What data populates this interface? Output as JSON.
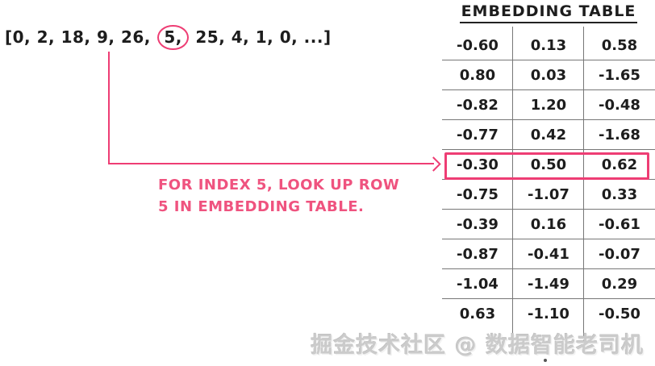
{
  "colors": {
    "accent_pink": "#ee3d74",
    "annotation_pink": "#ef537f",
    "grid_line_gray": "#777777",
    "ink_black": "#1d1d1d",
    "watermark_gray": "#cbcbcb"
  },
  "sequence": {
    "prefix": "[0, 2, 18, 9, 26,",
    "circled_value": "5,",
    "suffix": "25, 4, 1, 0, ...]"
  },
  "annotation": {
    "line1": "FOR INDEX 5, LOOK UP ROW",
    "line2": "5 IN EMBEDDING TABLE."
  },
  "table": {
    "title": "EMBEDDING TABLE",
    "columns": 3,
    "highlighted_row_index": 4,
    "highlighted_row_values": [
      "-0.30",
      "0.50",
      "0.62"
    ],
    "rows": [
      [
        "-0.60",
        "0.13",
        "0.58"
      ],
      [
        "0.80",
        "0.03",
        "-1.65"
      ],
      [
        "-0.82",
        "1.20",
        "-0.48"
      ],
      [
        "-0.77",
        "0.42",
        "-1.68"
      ],
      [
        "-0.30",
        "0.50",
        "0.62"
      ],
      [
        "-0.75",
        "-1.07",
        "0.33"
      ],
      [
        "-0.39",
        "0.16",
        "-0.61"
      ],
      [
        "-0.87",
        "-0.41",
        "-0.07"
      ],
      [
        "-1.04",
        "-1.49",
        "0.29"
      ],
      [
        "0.63",
        "-1.10",
        "-0.50"
      ]
    ]
  },
  "watermark": "掘金技术社区 @ 数据智能老司机"
}
